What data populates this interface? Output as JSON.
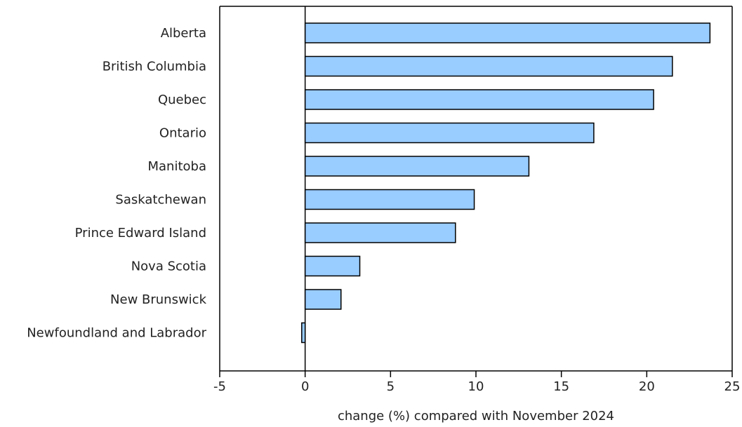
{
  "chart_data": {
    "type": "bar",
    "orientation": "horizontal",
    "categories": [
      "Alberta",
      "British Columbia",
      "Quebec",
      "Ontario",
      "Manitoba",
      "Saskatchewan",
      "Prince Edward Island",
      "Nova Scotia",
      "New Brunswick",
      "Newfoundland and Labrador"
    ],
    "values": [
      23.7,
      21.5,
      20.4,
      16.9,
      13.1,
      9.9,
      8.8,
      3.2,
      2.1,
      -0.2
    ],
    "xlabel": "change (%) compared with November 2024",
    "ylabel": "",
    "title": "",
    "xlim": [
      -5,
      25
    ],
    "xticks": [
      -5,
      0,
      5,
      10,
      15,
      20,
      25
    ],
    "grid": false,
    "legend": "none",
    "colors": {
      "bar_fill": "#99ccff",
      "bar_stroke": "#000000",
      "axis": "#000000"
    }
  }
}
